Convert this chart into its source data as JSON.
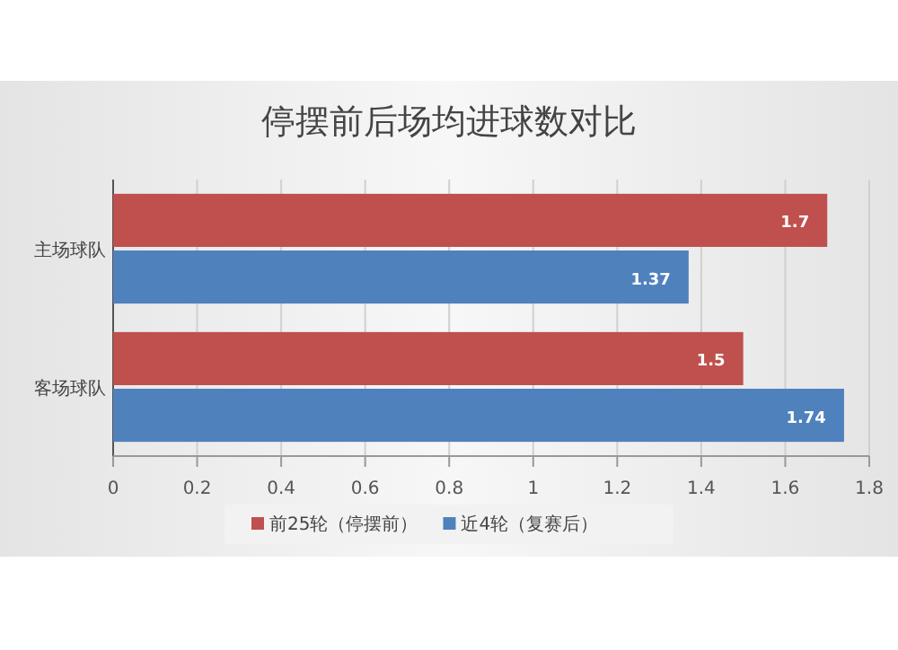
{
  "chart_data": {
    "type": "bar",
    "orientation": "horizontal",
    "title": "停摆前后场均进球数对比",
    "categories": [
      "主场球队",
      "客场球队"
    ],
    "series": [
      {
        "name": "前25轮（停摆前）",
        "color": "#c0504d",
        "values": [
          1.7,
          1.5
        ]
      },
      {
        "name": "近4轮（复赛后）",
        "color": "#4f81bd",
        "values": [
          1.37,
          1.74
        ]
      }
    ],
    "xlim": [
      0,
      1.8
    ],
    "xticks": [
      0,
      0.2,
      0.4,
      0.6,
      0.8,
      1,
      1.2,
      1.4,
      1.6,
      1.8
    ],
    "grid": "x",
    "legend": "bottom",
    "data_labels": true
  }
}
